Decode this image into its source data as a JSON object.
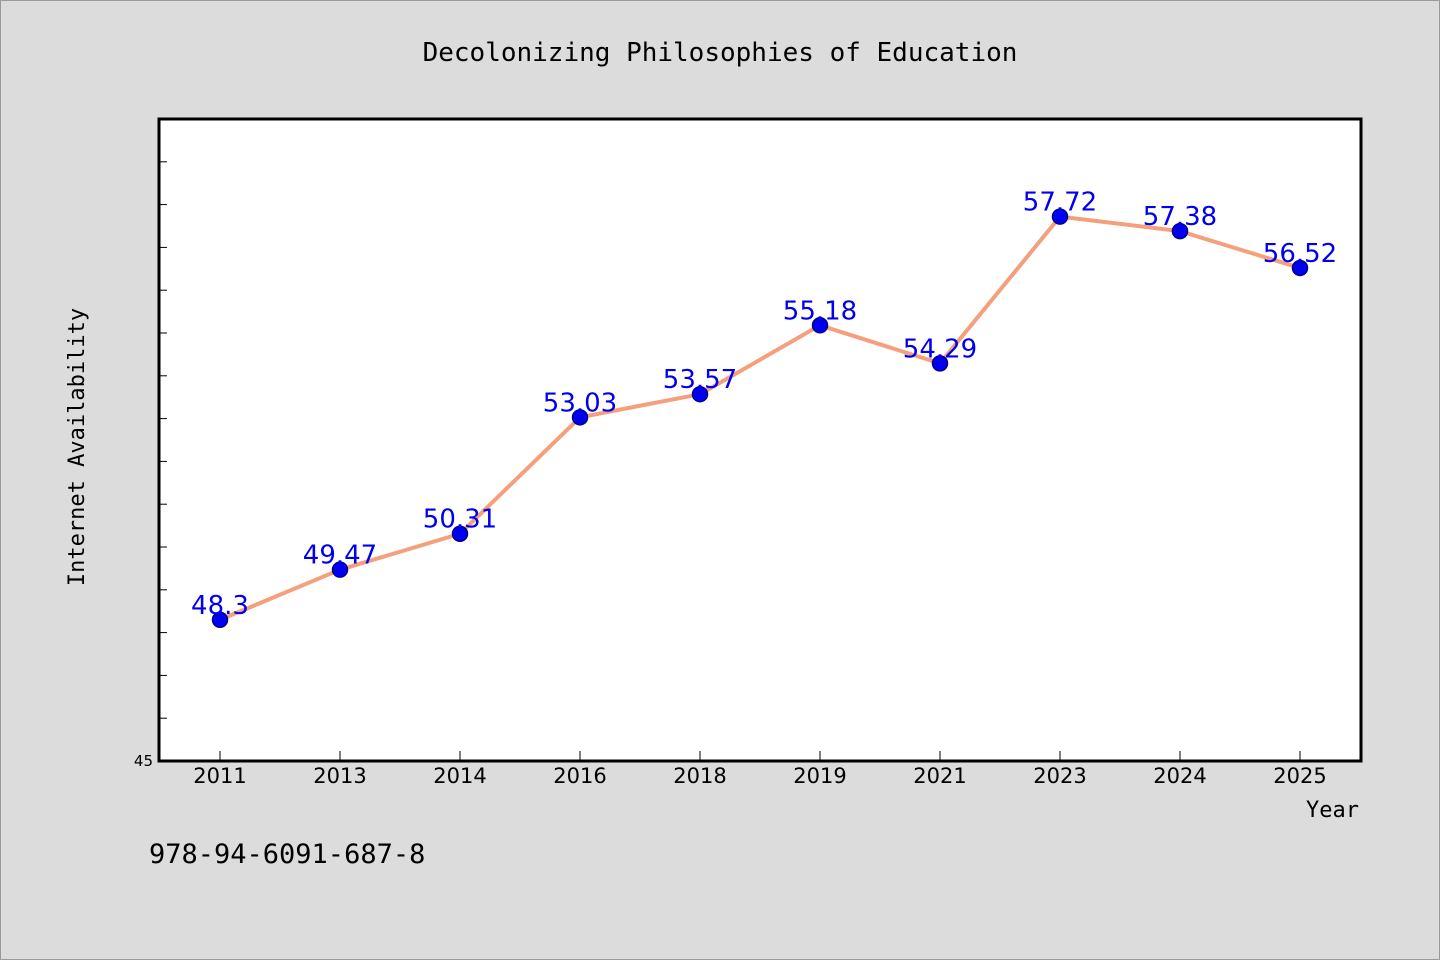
{
  "figure": {
    "isbn_text": "978-94-6091-687-8"
  },
  "chart_data": {
    "type": "line",
    "title": "Decolonizing Philosophies of Education",
    "xlabel": "Year",
    "ylabel": "Internet Availability",
    "categories": [
      "2011",
      "2013",
      "2014",
      "2016",
      "2018",
      "2019",
      "2021",
      "2023",
      "2024",
      "2025"
    ],
    "series": [
      {
        "values": [
          48.3,
          49.47,
          50.31,
          53.03,
          53.57,
          55.18,
          54.29,
          57.72,
          57.38,
          56.52
        ],
        "labels": [
          "48.3",
          "49.47",
          "50.31",
          "53.03",
          "53.57",
          "55.18",
          "54.29",
          "57.72",
          "57.38",
          "56.52"
        ]
      }
    ],
    "ylim": [
      45,
      60
    ],
    "y_tick_labels": [
      "45"
    ],
    "grid": false,
    "colors": {
      "line": "#f4a07c",
      "marker": "#0000ee",
      "marker_edge": "#00008b",
      "data_label": "#0000ee",
      "background": "#dcdcdc",
      "plot_area": "#ffffff",
      "axes": "#000000"
    }
  }
}
